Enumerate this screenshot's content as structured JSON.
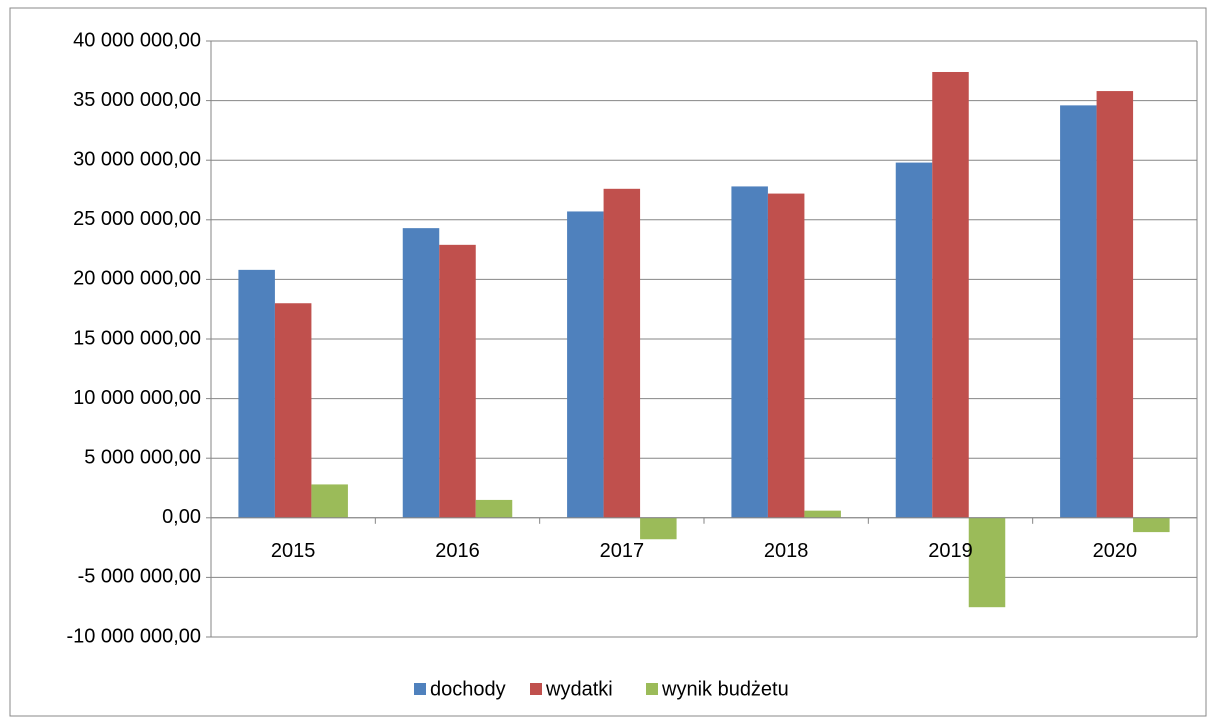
{
  "chart_data": {
    "type": "bar",
    "categories": [
      "2015",
      "2016",
      "2017",
      "2018",
      "2019",
      "2020"
    ],
    "series": [
      {
        "name": "dochody",
        "color": "#4f81bd",
        "values": [
          20800000,
          24300000,
          25700000,
          27800000,
          29800000,
          34600000
        ]
      },
      {
        "name": "wydatki",
        "color": "#c0504d",
        "values": [
          18000000,
          22900000,
          27600000,
          27200000,
          37400000,
          35800000
        ]
      },
      {
        "name": "wynik budżetu",
        "color": "#9bbb59",
        "values": [
          2800000,
          1500000,
          -1800000,
          600000,
          -7500000,
          -1200000
        ]
      }
    ],
    "ylim": [
      -10000000,
      40000000
    ],
    "yticks": [
      {
        "value": -10000000,
        "label": "-10 000 000,00"
      },
      {
        "value": -5000000,
        "label": "-5 000 000,00"
      },
      {
        "value": 0,
        "label": "0,00"
      },
      {
        "value": 5000000,
        "label": "5 000 000,00"
      },
      {
        "value": 10000000,
        "label": "10 000 000,00"
      },
      {
        "value": 15000000,
        "label": "15 000 000,00"
      },
      {
        "value": 20000000,
        "label": "20 000 000,00"
      },
      {
        "value": 25000000,
        "label": "25 000 000,00"
      },
      {
        "value": 30000000,
        "label": "30 000 000,00"
      },
      {
        "value": 35000000,
        "label": "35 000 000,00"
      },
      {
        "value": 40000000,
        "label": "40 000 000,00"
      }
    ],
    "grid": true,
    "legend": "bottom"
  }
}
